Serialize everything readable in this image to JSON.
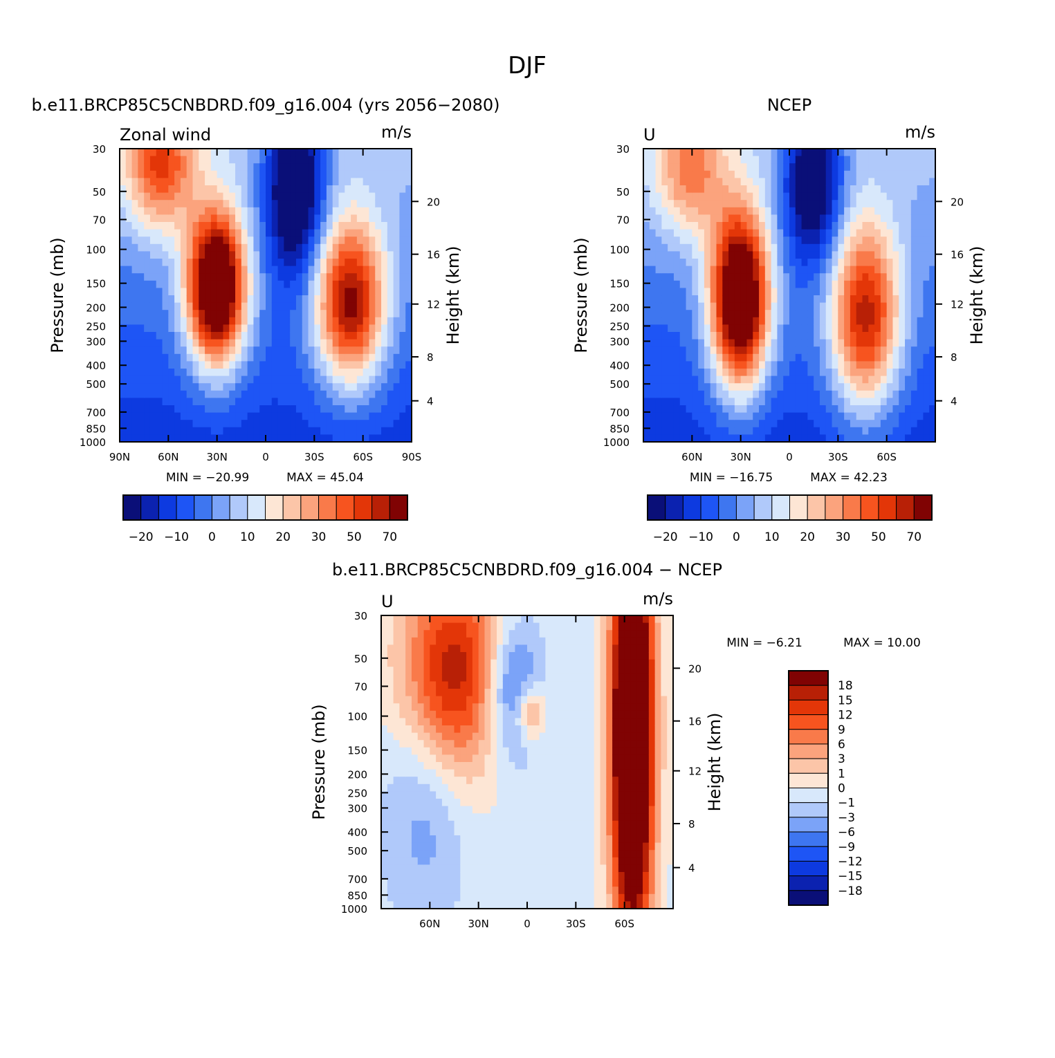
{
  "figure": {
    "title": "DJF"
  },
  "chart_data": [
    {
      "type": "heatmap",
      "id": "model",
      "title": "b.e11.BRCP85C5CNBDRD.f09_g16.004 (yrs 2056-2080)",
      "left_label": "Zonal wind",
      "units": "m/s",
      "xlabel": "",
      "ylabel": "Pressure (mb)",
      "y2label": "Height (km)",
      "x_ticks": [
        "90N",
        "60N",
        "30N",
        "0",
        "30S",
        "60S",
        "90S"
      ],
      "y_ticks": [
        "30",
        "50",
        "70",
        "100",
        "150",
        "200",
        "250",
        "300",
        "400",
        "500",
        "700",
        "850",
        "1000"
      ],
      "y2_ticks": [
        "20",
        "16",
        "12",
        "8",
        "4"
      ],
      "min_label": "MIN = -20.99",
      "max_label": "MAX = 45.04",
      "min": -20.99,
      "max": 45.04,
      "colorbar": {
        "orientation": "horizontal",
        "labels": [
          "-20",
          "-10",
          "0",
          "10",
          "20",
          "30",
          "50",
          "70"
        ],
        "colors": [
          "#0a0f78",
          "#0b22b0",
          "#0d3ae0",
          "#1e55f5",
          "#3e76f0",
          "#7ba3f8",
          "#b0c9fa",
          "#d8e8fb",
          "#fde6d5",
          "#fcc5a8",
          "#fba37d",
          "#f97a4a",
          "#f7541f",
          "#e33608",
          "#b82006",
          "#800303"
        ]
      }
    },
    {
      "type": "heatmap",
      "id": "ncep",
      "title": "NCEP",
      "left_label": "U",
      "units": "m/s",
      "xlabel": "",
      "ylabel": "Pressure (mb)",
      "y2label": "Height (km)",
      "x_ticks": [
        "60N",
        "30N",
        "0",
        "30S",
        "60S"
      ],
      "y_ticks": [
        "30",
        "50",
        "70",
        "100",
        "150",
        "200",
        "250",
        "300",
        "400",
        "500",
        "700",
        "850",
        "1000"
      ],
      "y2_ticks": [
        "20",
        "16",
        "12",
        "8",
        "4"
      ],
      "min_label": "MIN = -16.75",
      "max_label": "MAX = 42.23",
      "min": -16.75,
      "max": 42.23,
      "colorbar": {
        "orientation": "horizontal",
        "labels": [
          "-20",
          "-10",
          "0",
          "10",
          "20",
          "30",
          "50",
          "70"
        ],
        "colors": [
          "#0a0f78",
          "#0b22b0",
          "#0d3ae0",
          "#1e55f5",
          "#3e76f0",
          "#7ba3f8",
          "#b0c9fa",
          "#d8e8fb",
          "#fde6d5",
          "#fcc5a8",
          "#fba37d",
          "#f97a4a",
          "#f7541f",
          "#e33608",
          "#b82006",
          "#800303"
        ]
      }
    },
    {
      "type": "heatmap",
      "id": "diff",
      "title": "b.e11.BRCP85C5CNBDRD.f09_g16.004 - NCEP",
      "left_label": "U",
      "units": "m/s",
      "xlabel": "",
      "ylabel": "Pressure (mb)",
      "y2label": "Height (km)",
      "x_ticks": [
        "60N",
        "30N",
        "0",
        "30S",
        "60S"
      ],
      "y_ticks": [
        "30",
        "50",
        "70",
        "100",
        "150",
        "200",
        "250",
        "300",
        "400",
        "500",
        "700",
        "850",
        "1000"
      ],
      "y2_ticks": [
        "20",
        "16",
        "12",
        "8",
        "4"
      ],
      "min_label": "MIN = -6.21",
      "max_label": "MAX = 10.00",
      "min": -6.21,
      "max": 10.0,
      "colorbar": {
        "orientation": "vertical",
        "labels": [
          "18",
          "15",
          "12",
          "9",
          "6",
          "3",
          "1",
          "0",
          "-1",
          "-3",
          "-6",
          "-9",
          "-12",
          "-15",
          "-18"
        ],
        "colors": [
          "#800303",
          "#b82006",
          "#e33608",
          "#f7541f",
          "#f97a4a",
          "#fba37d",
          "#fcc5a8",
          "#fde6d5",
          "#d8e8fb",
          "#b0c9fa",
          "#7ba3f8",
          "#3e76f0",
          "#1e55f5",
          "#0d3ae0",
          "#0b22b0",
          "#0a0f78"
        ]
      }
    }
  ]
}
